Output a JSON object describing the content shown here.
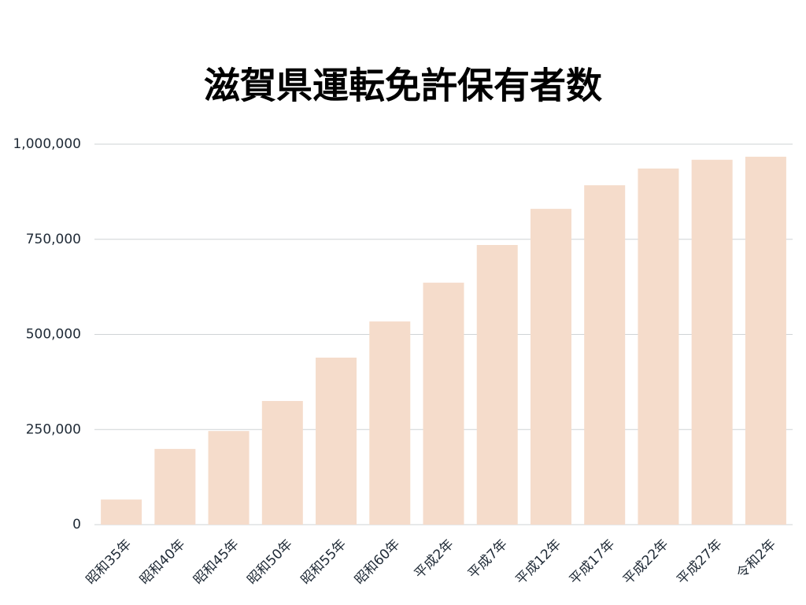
{
  "chart_data": {
    "type": "bar",
    "title": "滋賀県運転免許保有者数",
    "categories": [
      "昭和35年",
      "昭和40年",
      "昭和45年",
      "昭和50年",
      "昭和55年",
      "昭和60年",
      "平成2年",
      "平成7年",
      "平成12年",
      "平成17年",
      "平成22年",
      "平成27年",
      "令和2年"
    ],
    "values": [
      66000,
      199000,
      246000,
      325000,
      439000,
      534000,
      636000,
      735000,
      830000,
      892000,
      936000,
      959000,
      967000
    ],
    "color": "#f5dccb",
    "ylim": [
      0,
      1000000
    ],
    "yticks": [
      0,
      {
        "value": 250000,
        "label": "250,000"
      },
      {
        "value": 500000,
        "label": "500,000"
      },
      {
        "value": 750000,
        "label": "750,000"
      },
      {
        "value": 1000000,
        "label": "1,000,000"
      }
    ],
    "grid": true
  }
}
